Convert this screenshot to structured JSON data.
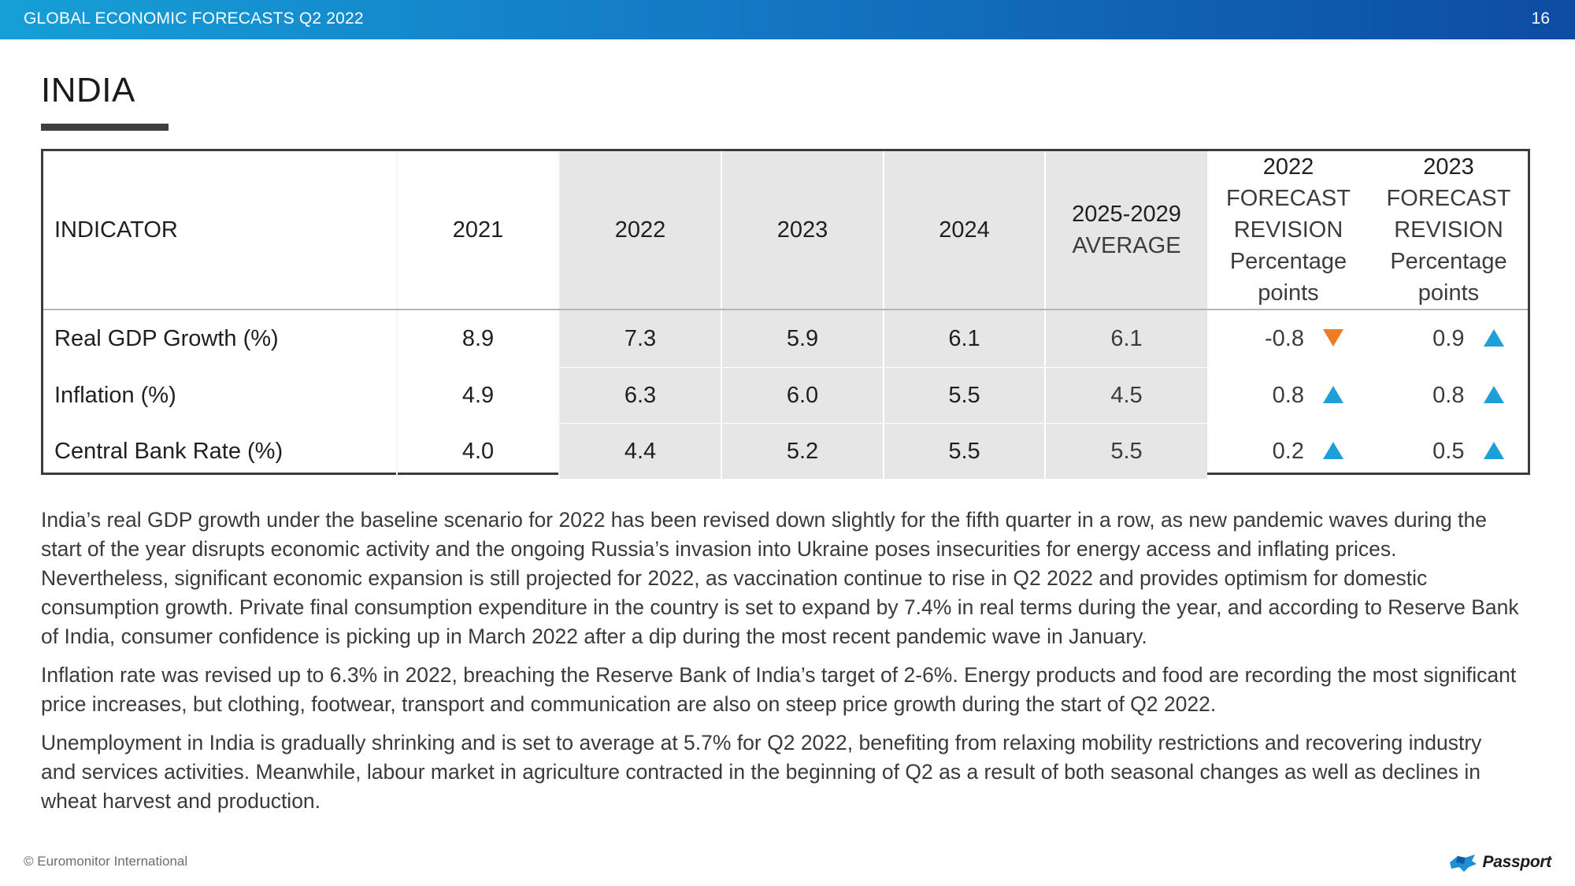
{
  "header": {
    "title": "GLOBAL ECONOMIC FORECASTS Q2 2022",
    "page_number": "16"
  },
  "country": "INDIA",
  "table": {
    "columns": {
      "indicator": "INDICATOR",
      "y2021": "2021",
      "y2022": "2022",
      "y2023": "2023",
      "y2024": "2024",
      "avg_line1": "2025-2029",
      "avg_line2": "AVERAGE",
      "rev2022": {
        "year": "2022",
        "l1": "FORECAST",
        "l2": "REVISION",
        "l3": "Percentage",
        "l4": "points"
      },
      "rev2023": {
        "year": "2023",
        "l1": "FORECAST",
        "l2": "REVISION",
        "l3": "Percentage",
        "l4": "points"
      }
    },
    "rows": [
      {
        "indicator": "Real GDP Growth (%)",
        "y2021": "8.9",
        "y2022": "7.3",
        "y2023": "5.9",
        "y2024": "6.1",
        "avg": "6.1",
        "rev2022": "-0.8",
        "rev2022_dir": "down",
        "rev2023": "0.9",
        "rev2023_dir": "up"
      },
      {
        "indicator": "Inflation (%)",
        "y2021": "4.9",
        "y2022": "6.3",
        "y2023": "6.0",
        "y2024": "5.5",
        "avg": "4.5",
        "rev2022": "0.8",
        "rev2022_dir": "up",
        "rev2023": "0.8",
        "rev2023_dir": "up"
      },
      {
        "indicator": "Central Bank Rate (%)",
        "y2021": "4.0",
        "y2022": "4.4",
        "y2023": "5.2",
        "y2024": "5.5",
        "avg": "5.5",
        "rev2022": "0.2",
        "rev2022_dir": "up",
        "rev2023": "0.5",
        "rev2023_dir": "up"
      }
    ]
  },
  "paragraphs": [
    "India’s real GDP growth under the baseline scenario for 2022 has been revised down slightly for the fifth quarter in a row, as new pandemic waves during the start of the year disrupts economic activity and the ongoing Russia’s invasion into Ukraine poses insecurities for energy access and inflating prices. Nevertheless, significant economic expansion is still projected for 2022, as vaccination continue to rise in Q2 2022 and provides optimism for domestic consumption growth. Private final consumption expenditure in the country is set to expand by 7.4% in real terms during the year, and according to Reserve Bank of India, consumer confidence is picking up in March 2022 after a dip during the most recent pandemic wave in January.",
    "Inflation rate was revised up to 6.3% in 2022, breaching the Reserve Bank of India’s target of 2-6%. Energy products and food are recording the most significant price increases, but clothing, footwear, transport and communication are also on steep price growth during the start of Q2 2022.",
    "Unemployment in India is gradually shrinking and is set to average at 5.7% for Q2 2022, benefiting from relaxing mobility restrictions and recovering industry and services activities. Meanwhile, labour market in agriculture contracted in the beginning of Q2 as a result of both seasonal changes as well as declines in wheat harvest and production."
  ],
  "footer": {
    "copyright": "© Euromonitor International",
    "brand": "Passport"
  },
  "colors": {
    "up_arrow": "#1f9fd8",
    "down_arrow": "#ef7b22",
    "accent": "#1479c6"
  },
  "icons": {
    "up": "triangle-up-icon",
    "down": "triangle-down-icon",
    "logo": "passport-logo-icon"
  }
}
